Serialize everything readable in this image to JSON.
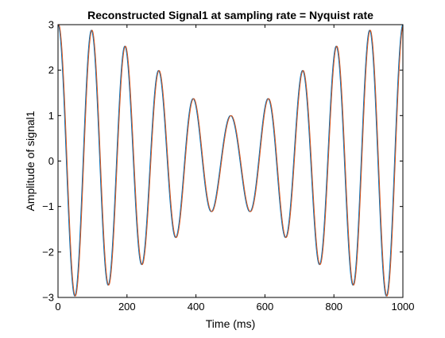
{
  "chart_data": {
    "type": "line",
    "title": "Reconstructed Signal1 at sampling rate = Nyquist rate",
    "xlabel": "Time (ms)",
    "ylabel": "Amplitude of signal1",
    "xlim": [
      0,
      1000
    ],
    "ylim": [
      -3,
      3
    ],
    "xticks": [
      0,
      200,
      400,
      600,
      800,
      1000
    ],
    "yticks": [
      -3,
      -2,
      -1,
      0,
      1,
      2,
      3
    ],
    "grid": false,
    "legend": "none",
    "series": [
      {
        "color": "#0072BD",
        "components": [
          {
            "amplitude": 2,
            "frequency_hz": 10
          },
          {
            "amplitude": 1,
            "frequency_hz": 11
          }
        ],
        "time_shift_ms": 0
      },
      {
        "color": "#D95319",
        "components": [
          {
            "amplitude": 2,
            "frequency_hz": 10
          },
          {
            "amplitude": 1,
            "frequency_hz": 11
          }
        ],
        "time_shift_ms": -2
      }
    ]
  }
}
